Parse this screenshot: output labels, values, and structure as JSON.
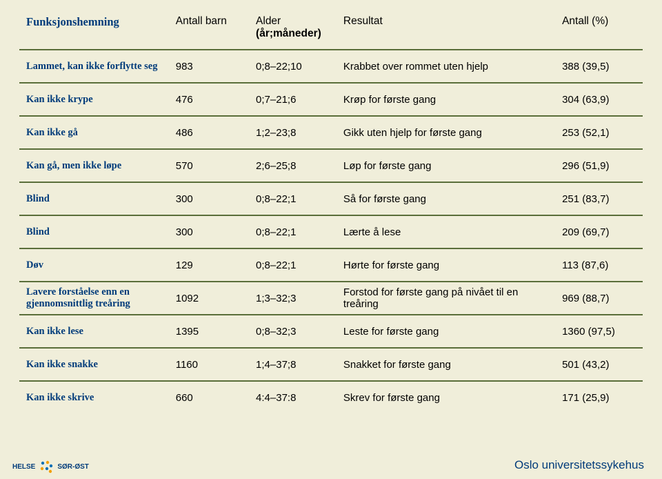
{
  "colors": {
    "background": "#f0eeda",
    "rule": "#5a6e3a",
    "heading": "#003b7a",
    "text": "#000000"
  },
  "table": {
    "headers": {
      "fn": "Funksjonshemning",
      "n": "Antall barn",
      "age_line1": "Alder",
      "age_line2": "(år;måneder)",
      "res": "Resultat",
      "pct": "Antall (%)"
    },
    "rows": [
      {
        "fn": "Lammet, kan ikke forflytte seg",
        "n": "983",
        "age": "0;8–22;10",
        "res": "Krabbet over rommet uten hjelp",
        "pct": "388 (39,5)"
      },
      {
        "fn": "Kan ikke krype",
        "n": "476",
        "age": "0;7–21;6",
        "res": "Krøp for første gang",
        "pct": "304 (63,9)"
      },
      {
        "fn": "Kan ikke gå",
        "n": "486",
        "age": "1;2–23;8",
        "res": "Gikk uten hjelp for første gang",
        "pct": "253 (52,1)"
      },
      {
        "fn": "Kan gå, men ikke løpe",
        "n": "570",
        "age": "2;6–25;8",
        "res": "Løp for første gang",
        "pct": "296 (51,9)"
      },
      {
        "fn": "Blind",
        "n": "300",
        "age": "0;8–22;1",
        "res": "Så for første gang",
        "pct": "251 (83,7)"
      },
      {
        "fn": "Blind",
        "n": "300",
        "age": "0;8–22;1",
        "res": "Lærte å lese",
        "pct": "209 (69,7)"
      },
      {
        "fn": "Døv",
        "n": "129",
        "age": "0;8–22;1",
        "res": "Hørte for første gang",
        "pct": "113 (87,6)"
      },
      {
        "fn": "Lavere forståelse enn en gjennomsnittlig treåring",
        "n": "1092",
        "age": "1;3–32;3",
        "res": "Forstod for første gang på nivået til en treåring",
        "pct": "969 (88,7)"
      },
      {
        "fn": "Kan ikke lese",
        "n": "1395",
        "age": "0;8–32;3",
        "res": "Leste for første gang",
        "pct": "1360 (97,5)"
      },
      {
        "fn": "Kan ikke snakke",
        "n": "1160",
        "age": "1;4–37;8",
        "res": "Snakket for første gang",
        "pct": "501 (43,2)"
      },
      {
        "fn": "Kan ikke skrive",
        "n": "660",
        "age": "4:4–37:8",
        "res": "Skrev for første gang",
        "pct": "171 (25,9)"
      }
    ]
  },
  "footer": {
    "left_text1": "HELSE",
    "left_text2": "SØR-ØST",
    "right_text": "Oslo universitetssykehus"
  }
}
